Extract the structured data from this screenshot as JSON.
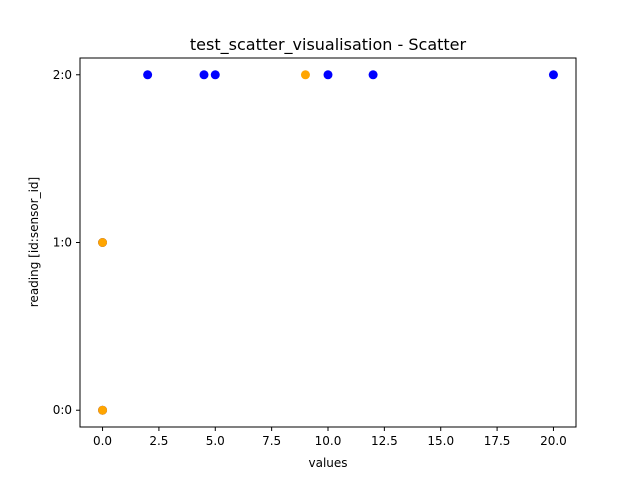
{
  "chart_data": {
    "type": "scatter",
    "title": "test_scatter_visualisation - Scatter",
    "xlabel": "values",
    "ylabel": "reading [id:sensor_id]",
    "xlim": [
      -1,
      21
    ],
    "ylim": [
      -0.1,
      2.1
    ],
    "x_ticks": [
      0.0,
      2.5,
      5.0,
      7.5,
      10.0,
      12.5,
      15.0,
      17.5,
      20.0
    ],
    "x_tick_labels": [
      "0.0",
      "2.5",
      "5.0",
      "7.5",
      "10.0",
      "12.5",
      "15.0",
      "17.5",
      "20.0"
    ],
    "y_ticks": [
      0,
      1,
      2
    ],
    "y_tick_labels": [
      "0:0",
      "1:0",
      "2:0"
    ],
    "grid": false,
    "colors": {
      "blue": "#0000ff",
      "orange": "#ffa500"
    },
    "points": [
      {
        "x": 0,
        "y": 0,
        "color": "#0000ff"
      },
      {
        "x": 0,
        "y": 0,
        "color": "#ffa500"
      },
      {
        "x": 0,
        "y": 1,
        "color": "#0000ff"
      },
      {
        "x": 0,
        "y": 1,
        "color": "#ffa500"
      },
      {
        "x": 2,
        "y": 2,
        "color": "#0000ff"
      },
      {
        "x": 4.5,
        "y": 2,
        "color": "#0000ff"
      },
      {
        "x": 5,
        "y": 2,
        "color": "#0000ff"
      },
      {
        "x": 9,
        "y": 2,
        "color": "#ffa500"
      },
      {
        "x": 10,
        "y": 2,
        "color": "#0000ff"
      },
      {
        "x": 12,
        "y": 2,
        "color": "#0000ff"
      },
      {
        "x": 20,
        "y": 2,
        "color": "#0000ff"
      }
    ]
  }
}
